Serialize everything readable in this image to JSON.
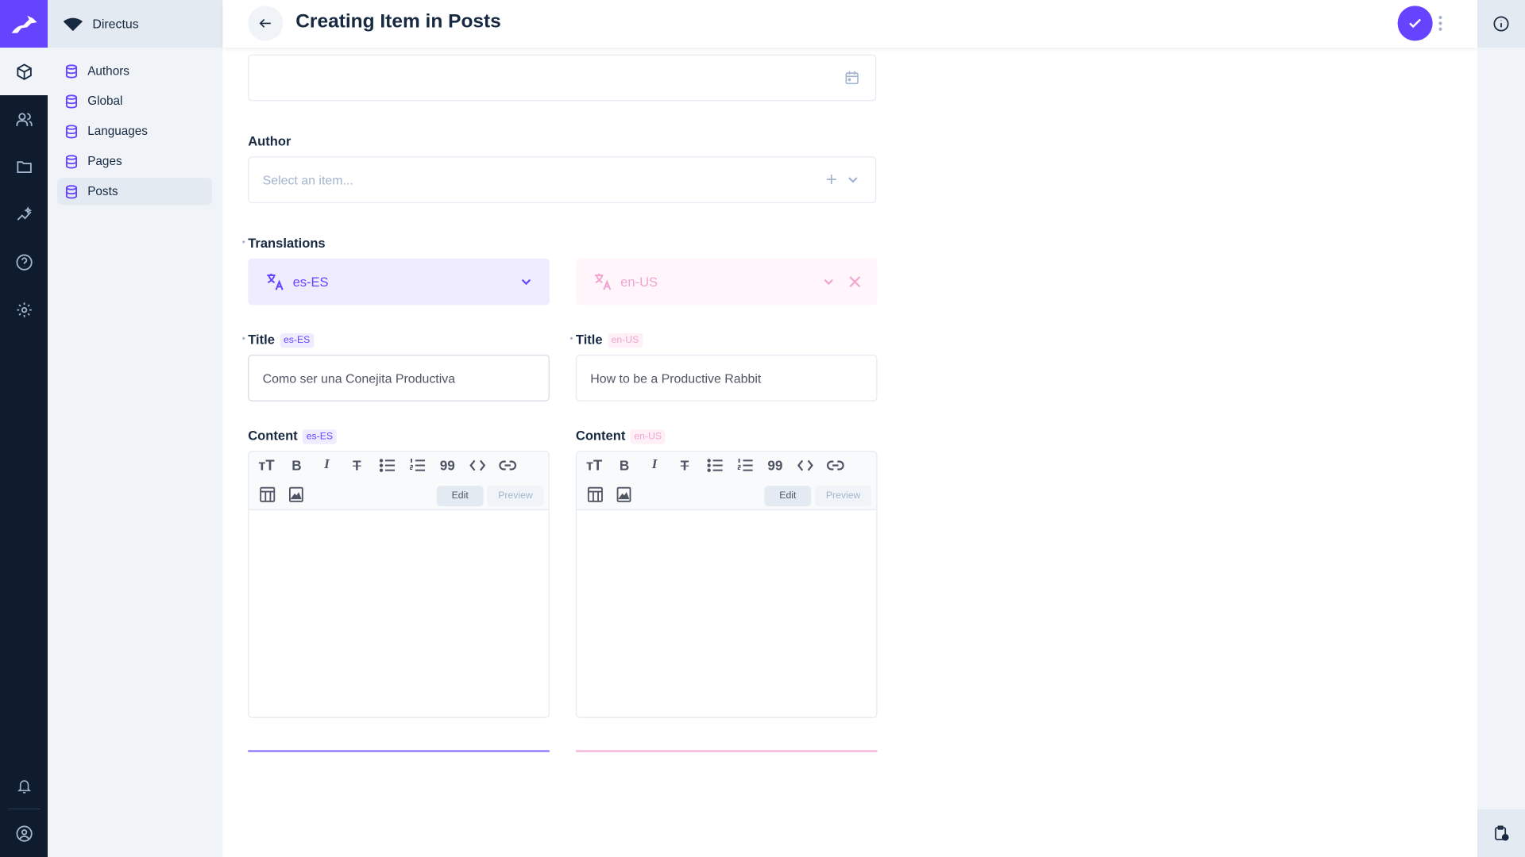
{
  "app": {
    "workspace": "Directus",
    "accent": "#6644ff",
    "secondary_accent": "#f1a5d1"
  },
  "nav": {
    "modules": [
      {
        "icon": "box-icon",
        "name": "Content",
        "active": true
      },
      {
        "icon": "users-icon",
        "name": "User Directory"
      },
      {
        "icon": "folder-icon",
        "name": "Files"
      },
      {
        "icon": "insights-icon",
        "name": "Insights"
      },
      {
        "icon": "help-icon",
        "name": "Help"
      },
      {
        "icon": "settings-icon",
        "name": "Settings"
      }
    ],
    "bottom": [
      {
        "icon": "bell-icon"
      },
      {
        "icon": "user-circle-icon"
      }
    ]
  },
  "sidebar": {
    "items": [
      {
        "label": "Authors"
      },
      {
        "label": "Global"
      },
      {
        "label": "Languages"
      },
      {
        "label": "Pages"
      },
      {
        "label": "Posts",
        "active": true
      }
    ]
  },
  "header": {
    "title": "Creating Item in Posts"
  },
  "form": {
    "author": {
      "label": "Author",
      "placeholder": "Select an item..."
    },
    "translations": {
      "label": "Translations",
      "left": {
        "lang": "es-ES",
        "title_label": "Title",
        "title_value": "Como ser una Conejita Productiva",
        "content_label": "Content"
      },
      "right": {
        "lang": "en-US",
        "title_label": "Title",
        "title_value": "How to be a Productive Rabbit",
        "content_label": "Content"
      }
    },
    "editor": {
      "edit_label": "Edit",
      "preview_label": "Preview",
      "tools": [
        "heading",
        "bold",
        "italic",
        "strikethrough",
        "bullet-list",
        "numbered-list",
        "blockquote",
        "code",
        "link",
        "table",
        "image"
      ]
    }
  }
}
